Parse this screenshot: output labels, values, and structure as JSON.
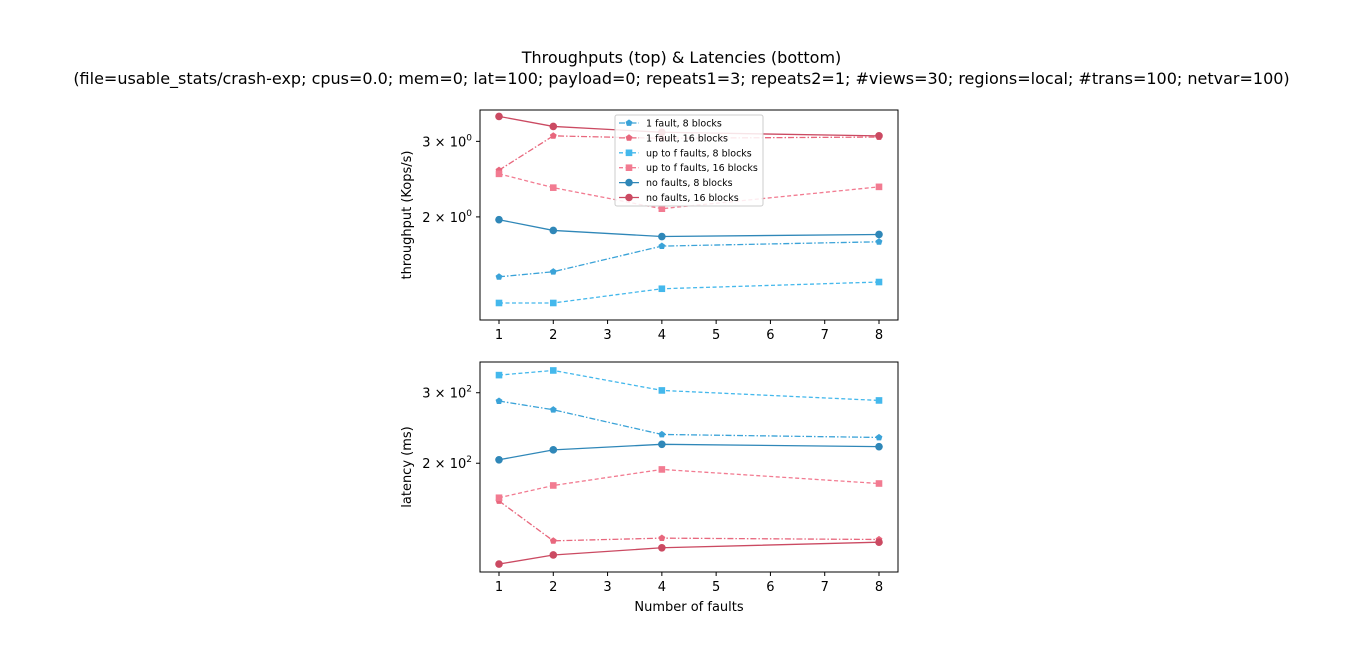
{
  "figure": {
    "title_line1": "Throughputs (top) & Latencies (bottom)",
    "title_line2": "(file=usable_stats/crash-exp; cpus=0.0; mem=0; lat=100; payload=0; repeats1=3; repeats2=1; #views=30; regions=local; #trans=100; netvar=100)"
  },
  "chart_data": [
    {
      "type": "line",
      "panel": "top",
      "ylabel": "throughput (Kops/s)",
      "xlabel": "",
      "y_scale": "log",
      "x": [
        1,
        2,
        4,
        8
      ],
      "xticks": [
        1,
        2,
        3,
        4,
        5,
        6,
        7,
        8
      ],
      "xlim": [
        0.65,
        8.35
      ],
      "ylim": [
        1.15,
        3.55
      ],
      "yticks": [
        {
          "value": 3,
          "base": "3 × 10",
          "exp": "0"
        },
        {
          "value": 2,
          "base": "2 × 10",
          "exp": "0"
        }
      ],
      "legend_position": "upper center",
      "series": [
        {
          "name": "1 fault, 8 blocks",
          "values": [
            1.45,
            1.49,
            1.71,
            1.75
          ],
          "color": "#3ba3d8",
          "dash": "6,2,1.5,2",
          "marker": "pentagon"
        },
        {
          "name": "1 fault, 16 blocks",
          "values": [
            2.57,
            3.09,
            3.05,
            3.07
          ],
          "color": "#e8677d",
          "dash": "6,2,1.5,2",
          "marker": "pentagon"
        },
        {
          "name": "up to f faults, 8 blocks",
          "values": [
            1.26,
            1.26,
            1.36,
            1.41
          ],
          "color": "#44b8ec",
          "dash": "4,2.5",
          "marker": "square"
        },
        {
          "name": "up to f faults, 16 blocks",
          "values": [
            2.52,
            2.34,
            2.09,
            2.35
          ],
          "color": "#f27b91",
          "dash": "4,2.5",
          "marker": "square"
        },
        {
          "name": "no faults, 8 blocks",
          "values": [
            1.97,
            1.86,
            1.8,
            1.82
          ],
          "color": "#2f87b8",
          "dash": "",
          "marker": "circle"
        },
        {
          "name": "no faults, 16 blocks",
          "values": [
            3.43,
            3.25,
            3.15,
            3.09
          ],
          "color": "#cb4a62",
          "dash": "",
          "marker": "circle"
        }
      ]
    },
    {
      "type": "line",
      "panel": "bottom",
      "ylabel": "latency (ms)",
      "xlabel": "Number of faults",
      "y_scale": "log",
      "x": [
        1,
        2,
        4,
        8
      ],
      "xticks": [
        1,
        2,
        3,
        4,
        5,
        6,
        7,
        8
      ],
      "xlim": [
        0.65,
        8.35
      ],
      "ylim": [
        107,
        358
      ],
      "yticks": [
        {
          "value": 300,
          "base": "3 × 10",
          "exp": "2"
        },
        {
          "value": 200,
          "base": "2 × 10",
          "exp": "2"
        }
      ],
      "series": [
        {
          "name": "1 fault, 8 blocks",
          "values": [
            286,
            272,
            236,
            232
          ],
          "color": "#3ba3d8",
          "dash": "6,2,1.5,2",
          "marker": "pentagon"
        },
        {
          "name": "1 fault, 16 blocks",
          "values": [
            161,
            128,
            130,
            129
          ],
          "color": "#e8677d",
          "dash": "6,2,1.5,2",
          "marker": "pentagon"
        },
        {
          "name": "up to f faults, 8 blocks",
          "values": [
            332,
            341,
            304,
            287
          ],
          "color": "#44b8ec",
          "dash": "4,2.5",
          "marker": "square"
        },
        {
          "name": "up to f faults, 16 blocks",
          "values": [
            164,
            176,
            193,
            178
          ],
          "color": "#f27b91",
          "dash": "4,2.5",
          "marker": "square"
        },
        {
          "name": "no faults, 8 blocks",
          "values": [
            204,
            216,
            223,
            220
          ],
          "color": "#2f87b8",
          "dash": "",
          "marker": "circle"
        },
        {
          "name": "no faults, 16 blocks",
          "values": [
            112,
            118,
            123,
            127
          ],
          "color": "#cb4a62",
          "dash": "",
          "marker": "circle"
        }
      ]
    }
  ]
}
